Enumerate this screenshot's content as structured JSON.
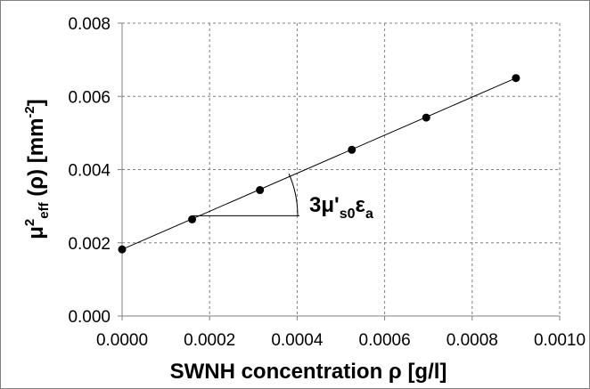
{
  "chart_data": {
    "type": "scatter",
    "title": "",
    "xlabel": "SWNH concentration ρ [g/l]",
    "ylabel": "μ2eff (ρ) [mm-2]",
    "ylabel_parts": {
      "mu": "μ",
      "sup": "2",
      "sub": "eff",
      "rest": " (ρ) [mm",
      "unit_sup": "-2",
      "end": "]"
    },
    "xlim": [
      0,
      0.001
    ],
    "ylim": [
      0,
      0.008
    ],
    "x_ticks": [
      "0.0000",
      "0.0002",
      "0.0004",
      "0.0006",
      "0.0008",
      "0.0010"
    ],
    "y_ticks": [
      "0.000",
      "0.002",
      "0.004",
      "0.006",
      "0.008"
    ],
    "grid": true,
    "series": [
      {
        "points": [
          {
            "x": 0.0,
            "y": 0.00182
          },
          {
            "x": 0.00016,
            "y": 0.00264
          },
          {
            "x": 0.000315,
            "y": 0.00344
          },
          {
            "x": 0.000525,
            "y": 0.00454
          },
          {
            "x": 0.000695,
            "y": 0.00542
          },
          {
            "x": 0.0009,
            "y": 0.0065
          }
        ]
      }
    ],
    "fit_line": {
      "x": [
        0.0,
        0.0009
      ],
      "y": [
        0.00182,
        0.0065
      ]
    },
    "annotation": {
      "text_main": "3μ'",
      "text_sub": "s0",
      "text_eps": "ε",
      "text_sub2": "a"
    },
    "colors": {
      "marker": "#000000",
      "line": "#000000",
      "grid": "#808080"
    }
  }
}
